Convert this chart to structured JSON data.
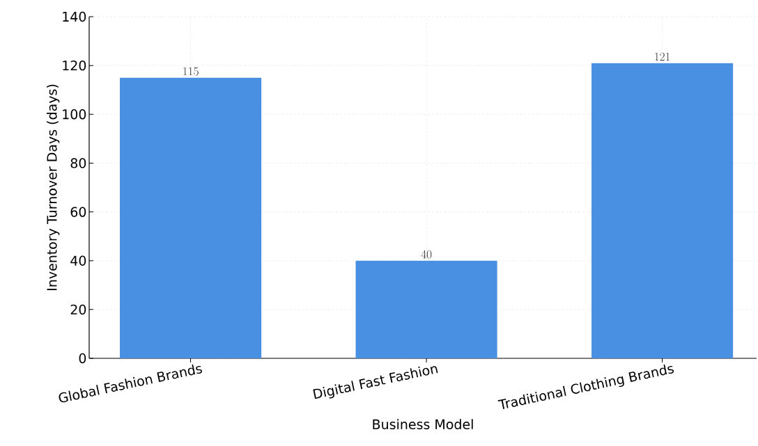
{
  "chart_data": {
    "type": "bar",
    "xlabel": "Business Model",
    "ylabel": "Inventory Turnover Days (days)",
    "categories": [
      "Global Fashion Brands",
      "Digital Fast Fashion",
      "Traditional Clothing Brands"
    ],
    "values": [
      115,
      40,
      121
    ],
    "color": "#4a90e2",
    "ylim": [
      0,
      140
    ],
    "yticks": [
      0,
      20,
      40,
      60,
      80,
      100,
      120,
      140
    ],
    "grid": true,
    "data_labels": true
  }
}
